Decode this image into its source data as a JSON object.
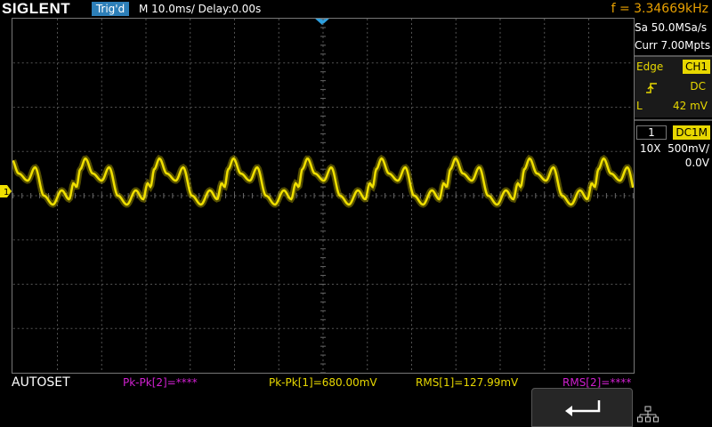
{
  "header": {
    "brand": "SIGLENT",
    "trigger_status": "Trig'd",
    "timebase": "M 10.0ms/ Delay:0.00s",
    "frequency": "f = 3.34669kHz"
  },
  "acquisition": {
    "sample_rate": "Sa 50.0MSa/s",
    "memory_depth": "Curr 7.00Mpts"
  },
  "trigger": {
    "type_label": "Edge",
    "source": "CH1",
    "coupling": "DC",
    "level_label": "L",
    "level_value": "42 mV"
  },
  "channel1": {
    "number": "1",
    "coupling_impedance": "DC1M",
    "probe": "10X",
    "scale": "500mV/",
    "offset": "0.0V",
    "marker_label": "1"
  },
  "measurements": {
    "autoset_label": "AUTOSET",
    "items": [
      {
        "text": "Pk-Pk[2]=****",
        "color": "#d020d0"
      },
      {
        "text": "Pk-Pk[1]=680.00mV",
        "color": "#e8d800"
      },
      {
        "text": "RMS[1]=127.99mV",
        "color": "#e8d800"
      },
      {
        "text": "RMS[2]=****",
        "color": "#d020d0"
      }
    ]
  },
  "icons": {
    "back": "return-arrow-icon",
    "network": "network-icon",
    "trigger_slope": "rising-edge-icon"
  },
  "colors": {
    "trace": "#f0e000",
    "ch2": "#d020d0",
    "accent_blue": "#2d7fb8",
    "frequency": "#e8a000"
  }
}
